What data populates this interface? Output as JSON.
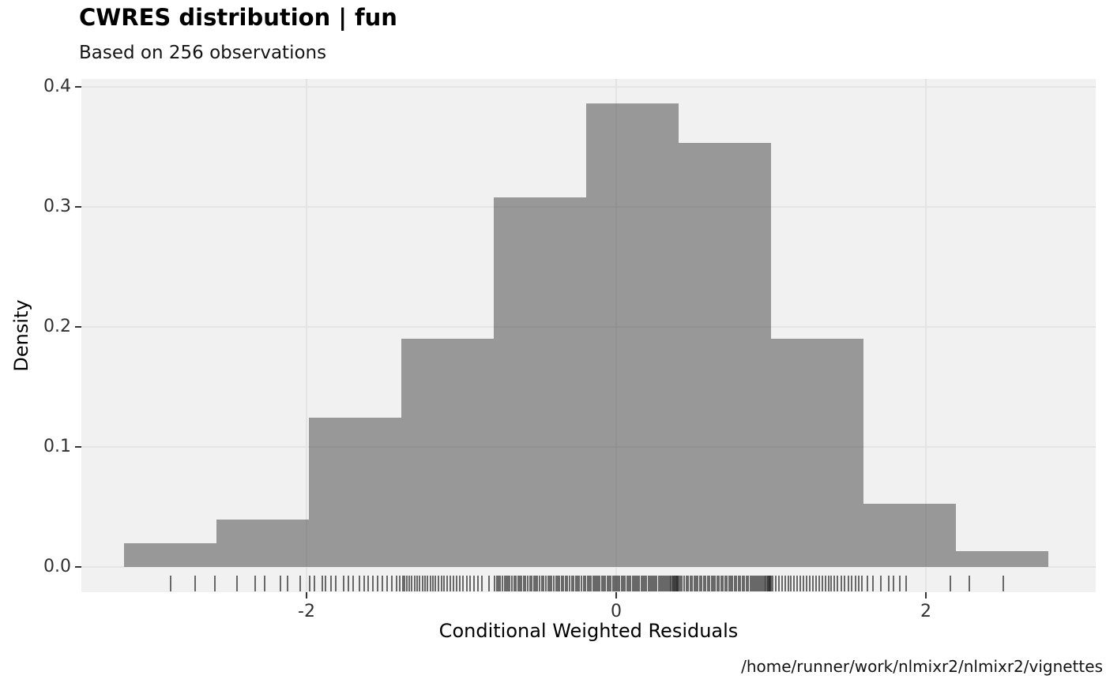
{
  "header": {
    "title": "CWRES distribution | fun",
    "subtitle": "Based on 256 observations"
  },
  "caption": "/home/runner/work/nlmixr2/nlmixr2/vignettes",
  "chart_data": {
    "type": "bar",
    "subtype": "histogram",
    "title": "CWRES distribution | fun",
    "subtitle": "Based on 256 observations",
    "xlabel": "Conditional Weighted Residuals",
    "ylabel": "Density",
    "n_observations": 256,
    "bin_width": 0.597,
    "xlim": [
      -3.45,
      3.09
    ],
    "ylim": [
      0,
      0.41
    ],
    "grid": true,
    "legend": false,
    "x_ticks": [
      -2,
      0,
      2
    ],
    "x_tick_labels": [
      "-2",
      "0",
      "2"
    ],
    "y_ticks": [
      0.0,
      0.1,
      0.2,
      0.3,
      0.4
    ],
    "y_tick_labels": [
      "0.0",
      "0.1",
      "0.2",
      "0.3",
      "0.4"
    ],
    "bins": [
      {
        "x0": -3.177,
        "x1": -2.58,
        "count": 3,
        "density": 0.0196
      },
      {
        "x0": -2.58,
        "x1": -1.984,
        "count": 6,
        "density": 0.0393
      },
      {
        "x0": -1.984,
        "x1": -1.387,
        "count": 19,
        "density": 0.1244
      },
      {
        "x0": -1.387,
        "x1": -0.79,
        "count": 29,
        "density": 0.1899
      },
      {
        "x0": -0.79,
        "x1": -0.194,
        "count": 47,
        "density": 0.3077
      },
      {
        "x0": -0.194,
        "x1": 0.403,
        "count": 59,
        "density": 0.3863
      },
      {
        "x0": 0.403,
        "x1": 1.0,
        "count": 54,
        "density": 0.3535
      },
      {
        "x0": 1.0,
        "x1": 1.597,
        "count": 29,
        "density": 0.1899
      },
      {
        "x0": 1.597,
        "x1": 2.193,
        "count": 8,
        "density": 0.0524
      },
      {
        "x0": 2.193,
        "x1": 2.79,
        "count": 2,
        "density": 0.0131
      }
    ],
    "rug_x": [
      -2.88,
      -2.72,
      -2.59,
      -2.45,
      -2.33,
      -2.27,
      -2.17,
      -2.12,
      -2.04,
      -1.98,
      -1.95,
      -1.9,
      -1.88,
      -1.84,
      -1.81,
      -1.76,
      -1.73,
      -1.7,
      -1.66,
      -1.63,
      -1.6,
      -1.57,
      -1.54,
      -1.51,
      -1.48,
      -1.45,
      -1.42,
      -1.4,
      -1.38,
      -1.368,
      -1.35,
      -1.338,
      -1.32,
      -1.3,
      -1.285,
      -1.27,
      -1.25,
      -1.235,
      -1.22,
      -1.2,
      -1.185,
      -1.17,
      -1.15,
      -1.13,
      -1.11,
      -1.09,
      -1.07,
      -1.05,
      -1.03,
      -1.01,
      -0.99,
      -0.965,
      -0.945,
      -0.92,
      -0.895,
      -0.865,
      -0.82,
      -0.785,
      -0.772,
      -0.76,
      -0.748,
      -0.735,
      -0.72,
      -0.71,
      -0.7,
      -0.688,
      -0.675,
      -0.66,
      -0.648,
      -0.635,
      -0.62,
      -0.61,
      -0.598,
      -0.585,
      -0.57,
      -0.558,
      -0.545,
      -0.53,
      -0.52,
      -0.508,
      -0.495,
      -0.48,
      -0.468,
      -0.455,
      -0.44,
      -0.43,
      -0.418,
      -0.405,
      -0.39,
      -0.378,
      -0.365,
      -0.35,
      -0.34,
      -0.328,
      -0.315,
      -0.3,
      -0.288,
      -0.275,
      -0.26,
      -0.25,
      -0.238,
      -0.225,
      -0.21,
      -0.198,
      -0.185,
      -0.175,
      -0.162,
      -0.15,
      -0.14,
      -0.128,
      -0.115,
      -0.105,
      -0.092,
      -0.08,
      -0.07,
      -0.058,
      -0.045,
      -0.035,
      -0.022,
      -0.01,
      0.0,
      0.012,
      0.022,
      0.035,
      0.045,
      0.058,
      0.07,
      0.08,
      0.092,
      0.105,
      0.115,
      0.128,
      0.14,
      0.15,
      0.162,
      0.172,
      0.185,
      0.195,
      0.208,
      0.218,
      0.23,
      0.24,
      0.252,
      0.262,
      0.275,
      0.285,
      0.295,
      0.305,
      0.315,
      0.325,
      0.335,
      0.345,
      0.352,
      0.36,
      0.366,
      0.372,
      0.378,
      0.384,
      0.388,
      0.392,
      0.395,
      0.398,
      0.401,
      0.412,
      0.425,
      0.44,
      0.452,
      0.465,
      0.478,
      0.49,
      0.503,
      0.515,
      0.528,
      0.54,
      0.553,
      0.565,
      0.578,
      0.59,
      0.602,
      0.615,
      0.628,
      0.64,
      0.652,
      0.665,
      0.678,
      0.69,
      0.702,
      0.715,
      0.728,
      0.74,
      0.752,
      0.765,
      0.778,
      0.79,
      0.802,
      0.815,
      0.828,
      0.84,
      0.852,
      0.865,
      0.878,
      0.89,
      0.9,
      0.91,
      0.92,
      0.93,
      0.94,
      0.95,
      0.958,
      0.965,
      0.972,
      0.978,
      0.984,
      0.988,
      0.992,
      0.996,
      0.999,
      1.012,
      1.03,
      1.05,
      1.07,
      1.09,
      1.11,
      1.13,
      1.15,
      1.17,
      1.19,
      1.21,
      1.23,
      1.25,
      1.27,
      1.29,
      1.31,
      1.33,
      1.35,
      1.37,
      1.39,
      1.41,
      1.43,
      1.455,
      1.475,
      1.5,
      1.52,
      1.545,
      1.565,
      1.585,
      1.62,
      1.66,
      1.71,
      1.76,
      1.79,
      1.83,
      1.87,
      2.16,
      2.28,
      2.5
    ],
    "colors": {
      "background": "#FFFFFF",
      "panel": "#F1F1F1",
      "grid": "#E4E4E4",
      "bar_fill": "#323232",
      "bar_opacity": 0.47,
      "rug": "#2D2D2D",
      "rug_opacity": 0.7,
      "tick_mark": "#333333",
      "axis_text": "#303030",
      "text": "#000000"
    }
  }
}
